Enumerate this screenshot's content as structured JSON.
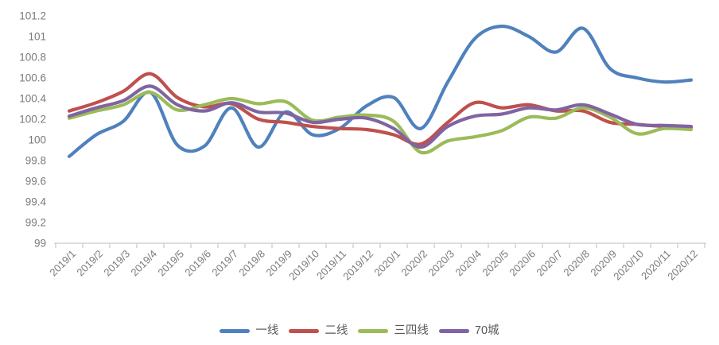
{
  "chart_data": {
    "type": "line",
    "title": "",
    "smoothed": true,
    "grid": false,
    "legend_position": "bottom",
    "categories": [
      "2019/1",
      "2019/2",
      "2019/3",
      "2019/4",
      "2019/5",
      "2019/6",
      "2019/7",
      "2019/8",
      "2019/9",
      "2019/10",
      "2019/11",
      "2019/12",
      "2020/1",
      "2020/2",
      "2020/3",
      "2020/4",
      "2020/5",
      "2020/6",
      "2020/7",
      "2020/8",
      "2020/9",
      "2020/10",
      "2020/11",
      "2020/12"
    ],
    "series": [
      {
        "name": "一线",
        "color": "#4F81BD",
        "values": [
          99.84,
          100.05,
          100.18,
          100.46,
          99.95,
          99.94,
          100.31,
          99.93,
          100.27,
          100.05,
          100.11,
          100.33,
          100.41,
          100.11,
          100.56,
          100.98,
          101.1,
          101.0,
          100.85,
          101.08,
          100.69,
          100.6,
          100.56,
          100.58
        ]
      },
      {
        "name": "二线",
        "color": "#C0504D",
        "values": [
          100.28,
          100.36,
          100.47,
          100.64,
          100.41,
          100.32,
          100.35,
          100.2,
          100.17,
          100.13,
          100.11,
          100.1,
          100.05,
          99.96,
          100.17,
          100.36,
          100.31,
          100.34,
          100.28,
          100.28,
          100.17,
          100.15,
          100.13,
          100.12
        ]
      },
      {
        "name": "三四线",
        "color": "#9BBB59",
        "values": [
          100.21,
          100.28,
          100.34,
          100.46,
          100.29,
          100.34,
          100.4,
          100.35,
          100.37,
          100.19,
          100.22,
          100.24,
          100.18,
          99.88,
          99.99,
          100.03,
          100.09,
          100.22,
          100.21,
          100.31,
          100.22,
          100.06,
          100.11,
          100.1
        ]
      },
      {
        "name": "70城",
        "color": "#8064A2",
        "values": [
          100.23,
          100.31,
          100.38,
          100.52,
          100.34,
          100.28,
          100.36,
          100.27,
          100.26,
          100.17,
          100.2,
          100.21,
          100.11,
          99.93,
          100.13,
          100.23,
          100.25,
          100.31,
          100.29,
          100.34,
          100.25,
          100.15,
          100.14,
          100.13
        ]
      }
    ],
    "y_axis": {
      "min": 99,
      "max": 101.2,
      "step": 0.2,
      "ticks": [
        "99",
        "99.2",
        "99.4",
        "99.6",
        "99.8",
        "100",
        "100.2",
        "100.4",
        "100.6",
        "100.8",
        "101",
        "101.2"
      ]
    },
    "x_axis": {
      "label_rotation_deg": -45
    }
  },
  "colors": {
    "background": "#FFFFFF",
    "axis_label": "#7A7A7A",
    "axis_line": "#C9C9C9",
    "legend_text": "#595959"
  }
}
